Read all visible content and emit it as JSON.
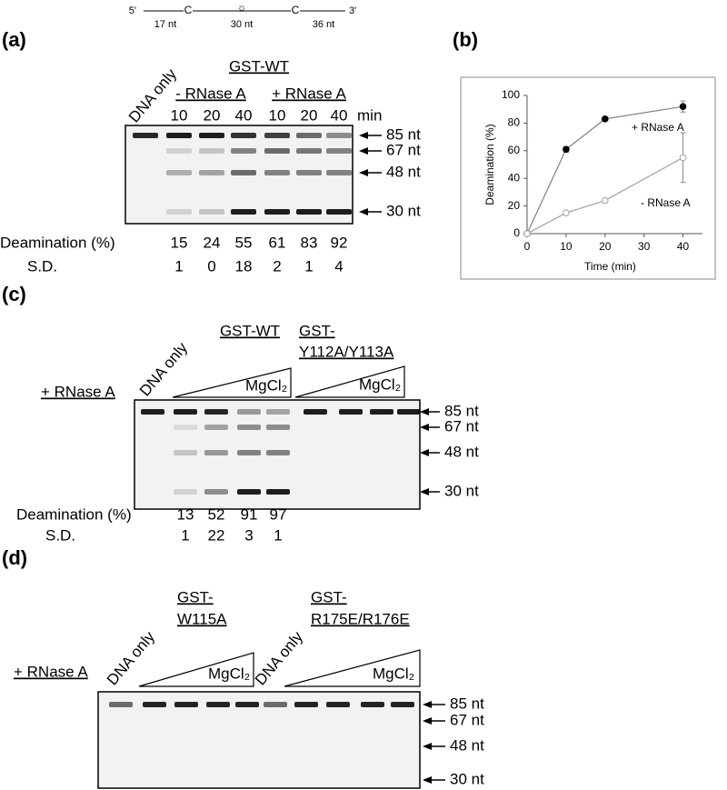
{
  "schematic": {
    "five_prime": "5'",
    "three_prime": "3'",
    "c_left": "C",
    "c_right": "C",
    "seg1": "17 nt",
    "seg2": "30 nt",
    "seg3": "36 nt"
  },
  "panel_a": {
    "label": "(a)",
    "group": "GST-WT",
    "dna_only": "DNA only",
    "minus": "- RNase A",
    "plus": "+ RNase A",
    "times": [
      10,
      20,
      40,
      10,
      20,
      40
    ],
    "time_unit": "min",
    "markers": [
      "85 nt",
      "67 nt",
      "48 nt",
      "30 nt"
    ],
    "deamination_label": "Deamination (%)",
    "deamination": [
      15,
      24,
      55,
      61,
      83,
      92
    ],
    "sd_label": "S.D.",
    "sd": [
      1,
      0,
      18,
      2,
      1,
      4
    ]
  },
  "panel_b": {
    "label": "(b)",
    "chart_data": {
      "type": "line",
      "x_label": "Time (min)",
      "y_label": "Deamination (%)",
      "x": [
        0,
        10,
        20,
        40
      ],
      "series": [
        {
          "name": "+ RNase A",
          "color": "#808080",
          "marker_fill": "#000000",
          "values": [
            0,
            61,
            83,
            92
          ],
          "errors": [
            null,
            2,
            1,
            4
          ]
        },
        {
          "name": "- RNase A",
          "color": "#a0a0a0",
          "marker_fill": "#ffffff",
          "values": [
            0,
            15,
            24,
            55
          ],
          "errors": [
            null,
            1,
            0,
            18
          ]
        }
      ],
      "xlim": [
        0,
        45
      ],
      "xticks": [
        0,
        10,
        20,
        30,
        40
      ],
      "ylim": [
        0,
        100
      ],
      "yticks": [
        0,
        20,
        40,
        60,
        80,
        100
      ],
      "grid": false
    }
  },
  "panel_c": {
    "label": "(c)",
    "condition": "+ RNase A",
    "dna_only": "DNA only",
    "group_wt": "GST-WT",
    "group_mut_line1": "GST-",
    "group_mut_line2": "Y112A/Y113A",
    "mg_wt": "MgCl₂",
    "mg_mut": "MgCl₂",
    "markers": [
      "85 nt",
      "67 nt",
      "48 nt",
      "30 nt"
    ],
    "deamination_label": "Deamination (%)",
    "deamination": [
      13,
      52,
      91,
      97
    ],
    "sd_label": "S.D.",
    "sd": [
      1,
      22,
      3,
      1
    ]
  },
  "panel_d": {
    "label": "(d)",
    "condition": "+ RNase A",
    "dna_only_1": "DNA only",
    "dna_only_2": "DNA only",
    "group1_line1": "GST-",
    "group1_line2": "W115A",
    "group2_line1": "GST-",
    "group2_line2": "R175E/R176E",
    "mg_1": "MgCl₂",
    "mg_2": "MgCl₂",
    "markers": [
      "85 nt",
      "67 nt",
      "48 nt",
      "30 nt"
    ]
  }
}
